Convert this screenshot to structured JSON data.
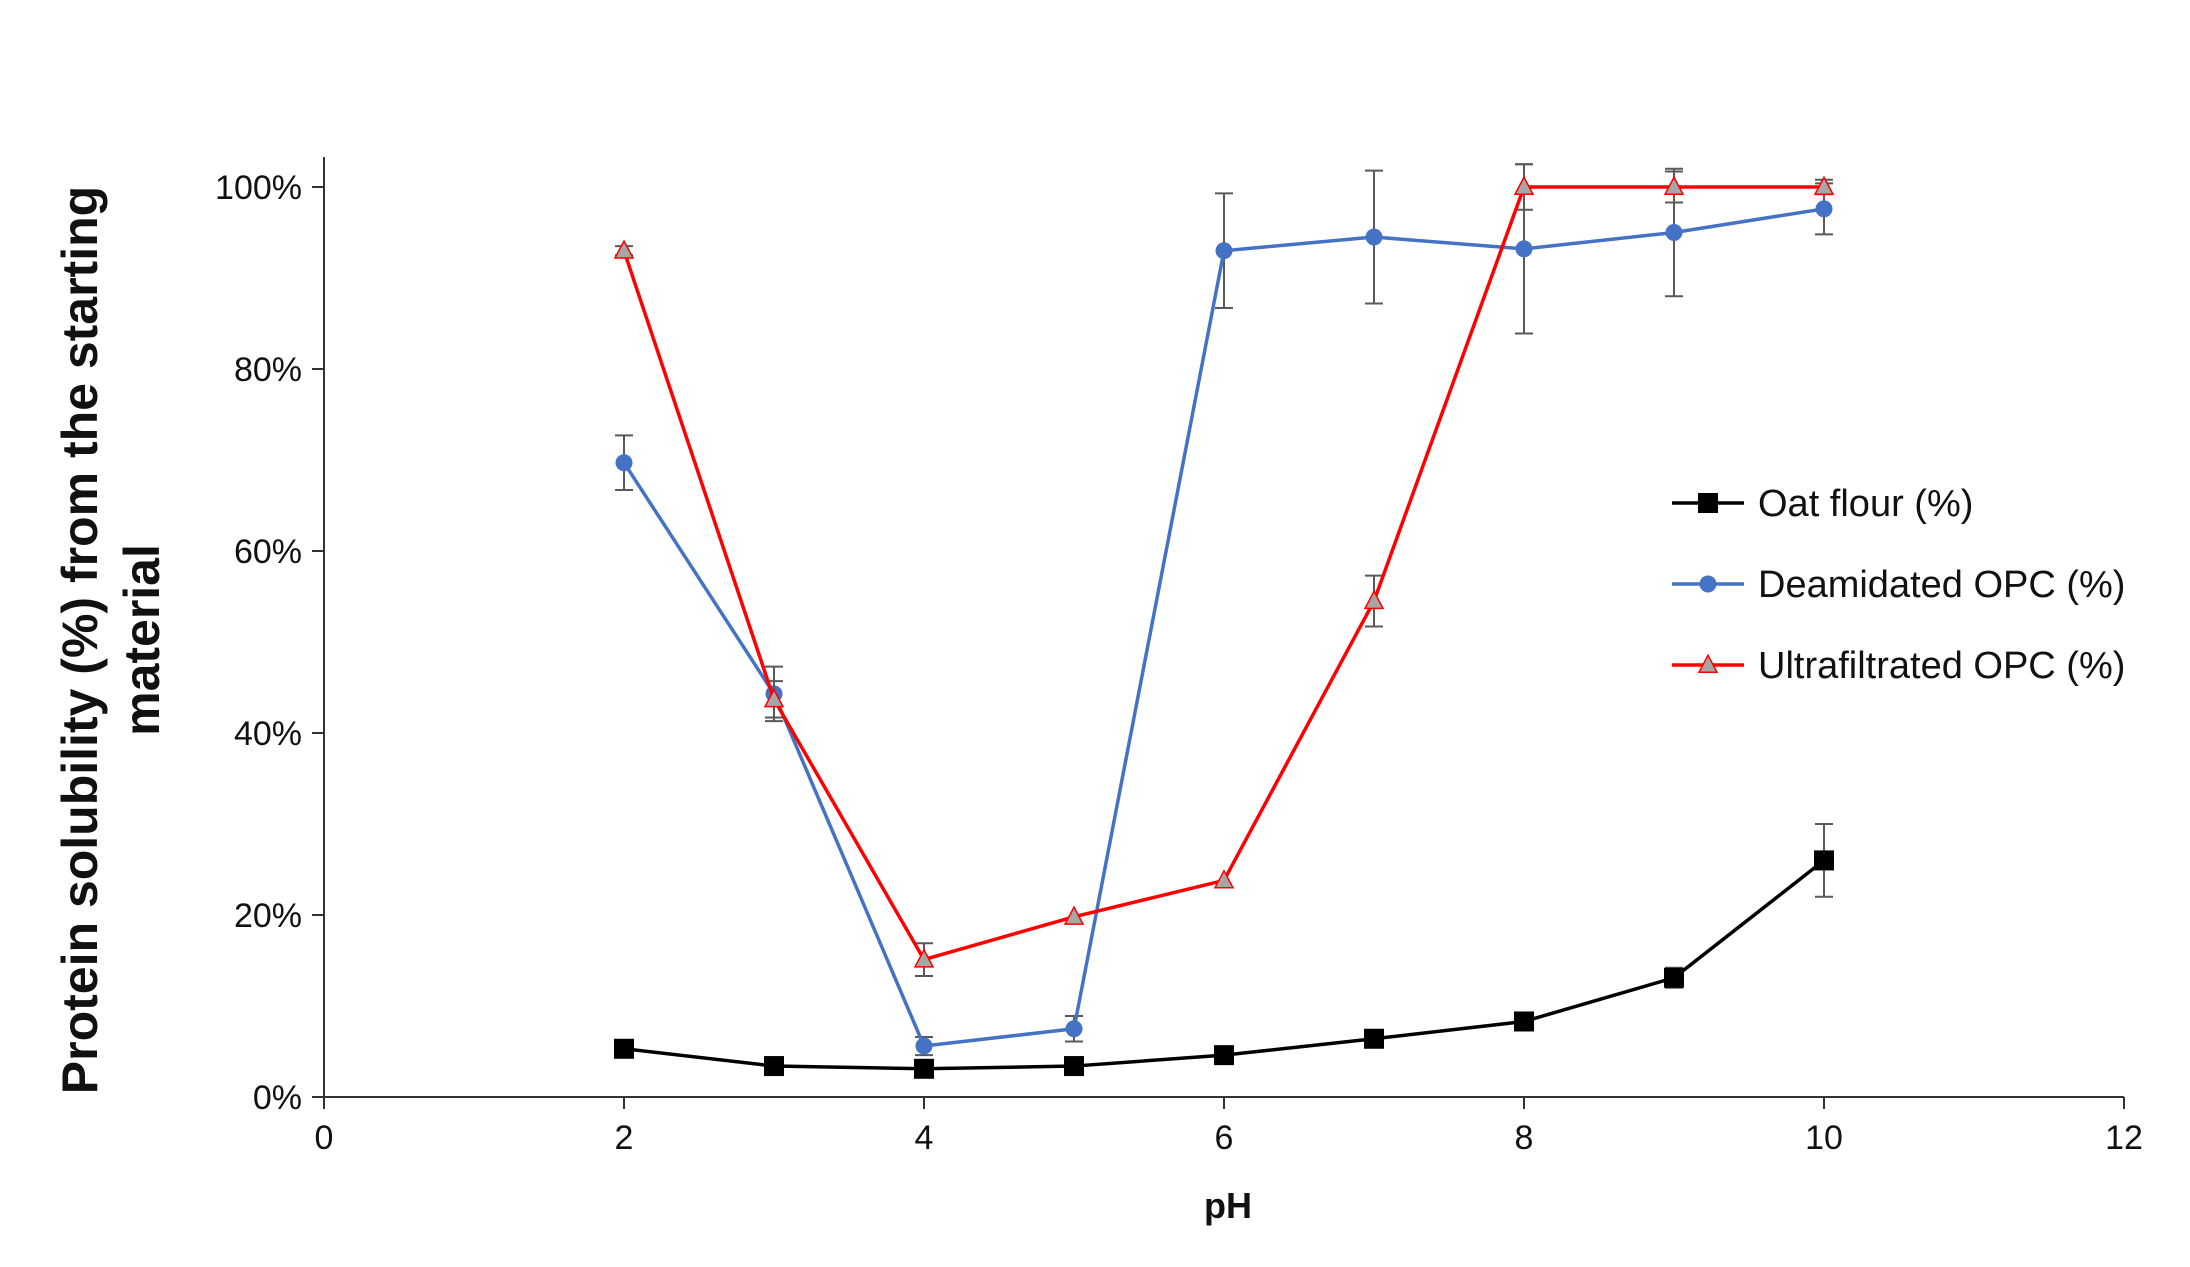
{
  "chart_data": {
    "type": "line",
    "title": "",
    "xlabel": "pH",
    "ylabel_lines": [
      "Protein solubility (%) from the starting",
      "material"
    ],
    "xlim": [
      0,
      12
    ],
    "ylim": [
      0,
      1
    ],
    "x_ticks": [
      0,
      2,
      4,
      6,
      8,
      10,
      12
    ],
    "x_tick_labels": [
      "0",
      "2",
      "4",
      "6",
      "8",
      "10",
      "12"
    ],
    "y_ticks": [
      0,
      0.2,
      0.4,
      0.6,
      0.8,
      1.0
    ],
    "y_tick_labels": [
      "0%",
      "20%",
      "40%",
      "60%",
      "80%",
      "100%"
    ],
    "grid": false,
    "legend_position": "right",
    "series": [
      {
        "name": "Oat flour  (%)",
        "color": "#000000",
        "marker": "square",
        "x": [
          2,
          3,
          4,
          5,
          6,
          7,
          8,
          9,
          10
        ],
        "y": [
          0.053,
          0.034,
          0.031,
          0.034,
          0.046,
          0.064,
          0.083,
          0.131,
          0.26
        ],
        "error": [
          0,
          0,
          0,
          0,
          0,
          0,
          0,
          0.011,
          0.04
        ]
      },
      {
        "name": "Deamidated OPC (%)",
        "color": "#4472C4",
        "marker": "circle",
        "x": [
          2,
          3,
          4,
          5,
          6,
          7,
          8,
          9,
          10
        ],
        "y": [
          0.697,
          0.443,
          0.056,
          0.075,
          0.93,
          0.945,
          0.932,
          0.95,
          0.976
        ],
        "error": [
          0.03,
          0.03,
          0.01,
          0.014,
          0.063,
          0.073,
          0.093,
          0.07,
          0.028
        ]
      },
      {
        "name": "Ultrafiltrated OPC (%)",
        "color": "#FF0000",
        "marker": "triangle",
        "marker_fill": "#A6A6A6",
        "x": [
          2,
          3,
          4,
          5,
          6,
          7,
          8,
          9,
          10
        ],
        "y": [
          0.93,
          0.437,
          0.151,
          0.198,
          0.238,
          0.545,
          1.0,
          1.0,
          1.0
        ],
        "error": [
          0.005,
          0.02,
          0.018,
          0,
          0,
          0.028,
          0.025,
          0.017,
          0.008
        ]
      }
    ]
  }
}
